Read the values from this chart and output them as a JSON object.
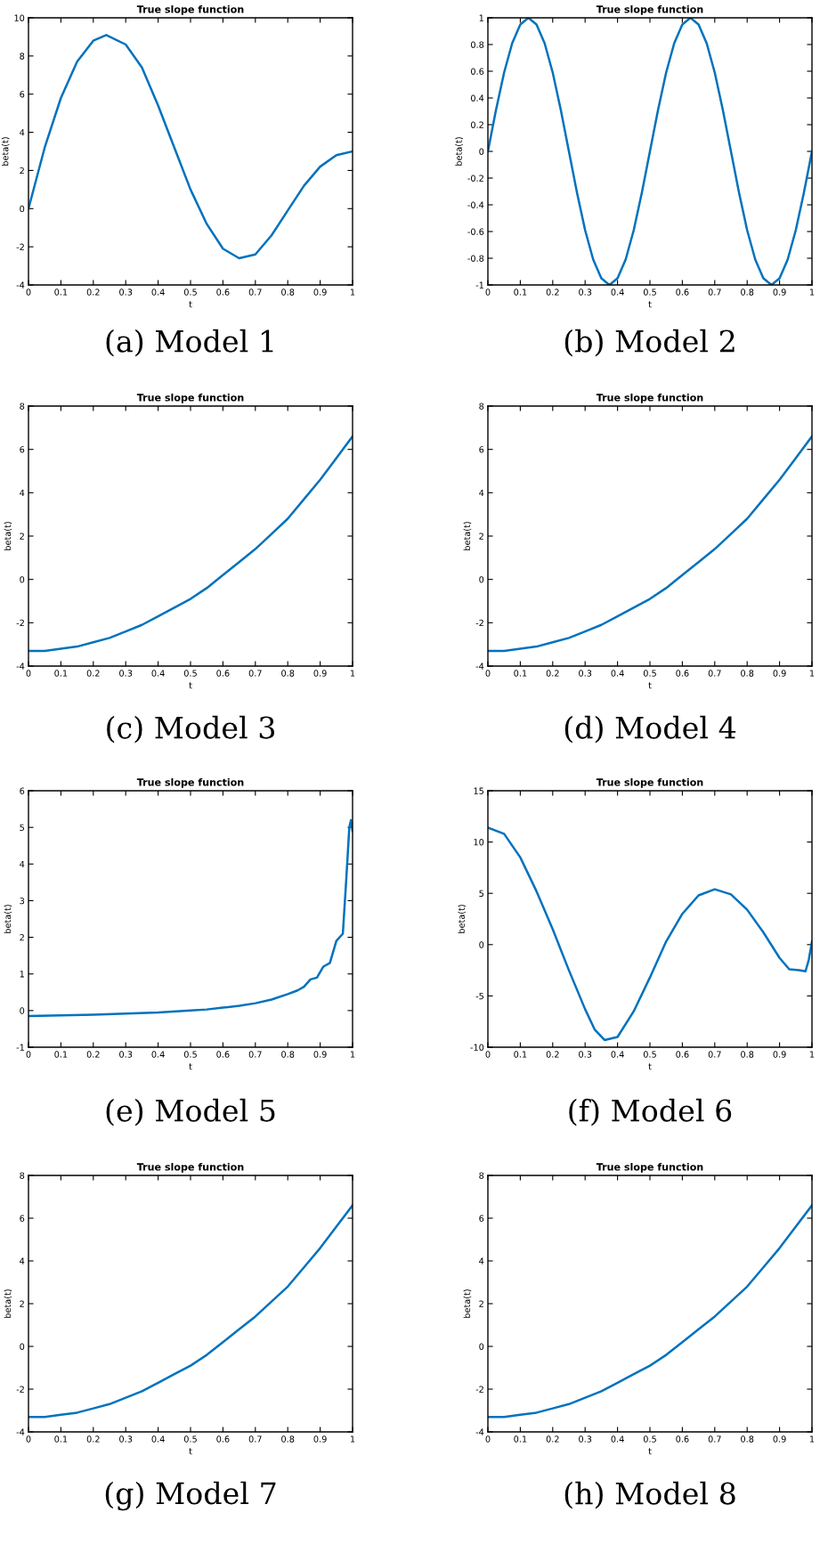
{
  "chart_data": [
    {
      "type": "line",
      "title": "True slope function",
      "xlabel": "t",
      "ylabel": "beta(t)",
      "annotations": [
        "(a) Model 1"
      ],
      "xlim": [
        0,
        1
      ],
      "xticks": [
        0,
        0.1,
        0.2,
        0.3,
        0.4,
        0.5,
        0.6,
        0.7,
        0.8,
        0.9,
        1
      ],
      "ylim": [
        -4,
        10
      ],
      "yticks": [
        -4,
        -2,
        0,
        2,
        4,
        6,
        8,
        10
      ],
      "grid": false,
      "legend": false,
      "series": [
        {
          "color": "#0072bd",
          "x": [
            0,
            0.05,
            0.1,
            0.15,
            0.2,
            0.24,
            0.3,
            0.35,
            0.4,
            0.45,
            0.5,
            0.55,
            0.6,
            0.65,
            0.7,
            0.75,
            0.8,
            0.85,
            0.9,
            0.95,
            1
          ],
          "values": [
            0,
            3.2,
            5.8,
            7.7,
            8.8,
            9.1,
            8.6,
            7.4,
            5.4,
            3.2,
            1.0,
            -0.8,
            -2.1,
            -2.6,
            -2.4,
            -1.4,
            -0.1,
            1.2,
            2.2,
            2.8,
            3.0
          ]
        }
      ]
    },
    {
      "type": "line",
      "title": "True slope function",
      "xlabel": "t",
      "ylabel": "beta(t)",
      "annotations": [
        "(b) Model 2"
      ],
      "xlim": [
        0,
        1
      ],
      "xticks": [
        0,
        0.1,
        0.2,
        0.3,
        0.4,
        0.5,
        0.6,
        0.7,
        0.8,
        0.9,
        1
      ],
      "ylim": [
        -1,
        1
      ],
      "yticks": [
        -1,
        -0.8,
        -0.6,
        -0.4,
        -0.2,
        0,
        0.2,
        0.4,
        0.6,
        0.8,
        1
      ],
      "grid": false,
      "legend": false,
      "series": [
        {
          "color": "#0072bd",
          "x": [
            0,
            0.025,
            0.05,
            0.075,
            0.1,
            0.125,
            0.15,
            0.175,
            0.2,
            0.225,
            0.25,
            0.275,
            0.3,
            0.325,
            0.35,
            0.375,
            0.4,
            0.425,
            0.45,
            0.475,
            0.5,
            0.525,
            0.55,
            0.575,
            0.6,
            0.625,
            0.65,
            0.675,
            0.7,
            0.725,
            0.75,
            0.775,
            0.8,
            0.825,
            0.85,
            0.875,
            0.9,
            0.925,
            0.95,
            0.975,
            1
          ],
          "values": [
            0,
            0.31,
            0.59,
            0.81,
            0.95,
            1,
            0.95,
            0.81,
            0.59,
            0.31,
            0,
            -0.31,
            -0.59,
            -0.81,
            -0.95,
            -1,
            -0.95,
            -0.81,
            -0.59,
            -0.31,
            0,
            0.31,
            0.59,
            0.81,
            0.95,
            1,
            0.95,
            0.81,
            0.59,
            0.31,
            0,
            -0.31,
            -0.59,
            -0.81,
            -0.95,
            -1,
            -0.95,
            -0.81,
            -0.59,
            -0.31,
            0
          ]
        }
      ]
    },
    {
      "type": "line",
      "title": "True slope function",
      "xlabel": "t",
      "ylabel": "beta(t)",
      "annotations": [
        "(c) Model 3"
      ],
      "xlim": [
        0,
        1
      ],
      "xticks": [
        0,
        0.1,
        0.2,
        0.3,
        0.4,
        0.5,
        0.6,
        0.7,
        0.8,
        0.9,
        1
      ],
      "ylim": [
        -4,
        8
      ],
      "yticks": [
        -4,
        -2,
        0,
        2,
        4,
        6,
        8
      ],
      "grid": false,
      "legend": false,
      "series": [
        {
          "color": "#0072bd",
          "x": [
            0,
            0.05,
            0.1,
            0.15,
            0.2,
            0.25,
            0.3,
            0.35,
            0.4,
            0.45,
            0.5,
            0.55,
            0.6,
            0.65,
            0.7,
            0.75,
            0.8,
            0.85,
            0.9,
            0.95,
            1
          ],
          "values": [
            -3.3,
            -3.3,
            -3.2,
            -3.1,
            -2.9,
            -2.7,
            -2.4,
            -2.1,
            -1.7,
            -1.3,
            -0.9,
            -0.4,
            0.2,
            0.8,
            1.4,
            2.1,
            2.8,
            3.7,
            4.6,
            5.6,
            6.6
          ]
        }
      ]
    },
    {
      "type": "line",
      "title": "True slope function",
      "xlabel": "t",
      "ylabel": "beta(t)",
      "annotations": [
        "(d) Model 4"
      ],
      "xlim": [
        0,
        1
      ],
      "xticks": [
        0,
        0.1,
        0.2,
        0.3,
        0.4,
        0.5,
        0.6,
        0.7,
        0.8,
        0.9,
        1
      ],
      "ylim": [
        -4,
        8
      ],
      "yticks": [
        -4,
        -2,
        0,
        2,
        4,
        6,
        8
      ],
      "grid": false,
      "legend": false,
      "series": [
        {
          "color": "#0072bd",
          "x": [
            0,
            0.05,
            0.1,
            0.15,
            0.2,
            0.25,
            0.3,
            0.35,
            0.4,
            0.45,
            0.5,
            0.55,
            0.6,
            0.65,
            0.7,
            0.75,
            0.8,
            0.85,
            0.9,
            0.95,
            1
          ],
          "values": [
            -3.3,
            -3.3,
            -3.2,
            -3.1,
            -2.9,
            -2.7,
            -2.4,
            -2.1,
            -1.7,
            -1.3,
            -0.9,
            -0.4,
            0.2,
            0.8,
            1.4,
            2.1,
            2.8,
            3.7,
            4.6,
            5.6,
            6.6
          ]
        }
      ]
    },
    {
      "type": "line",
      "title": "True slope function",
      "xlabel": "t",
      "ylabel": "beta(t)",
      "annotations": [
        "(e) Model 5"
      ],
      "xlim": [
        0,
        1
      ],
      "xticks": [
        0,
        0.1,
        0.2,
        0.3,
        0.4,
        0.5,
        0.6,
        0.7,
        0.8,
        0.9,
        1
      ],
      "ylim": [
        -1,
        6
      ],
      "yticks": [
        -1,
        0,
        1,
        2,
        3,
        4,
        5,
        6
      ],
      "grid": false,
      "legend": false,
      "series": [
        {
          "color": "#0072bd",
          "x": [
            0,
            0.1,
            0.2,
            0.3,
            0.4,
            0.5,
            0.55,
            0.6,
            0.65,
            0.7,
            0.75,
            0.8,
            0.83,
            0.85,
            0.87,
            0.89,
            0.91,
            0.93,
            0.95,
            0.97,
            0.98,
            0.99,
            0.995,
            1
          ],
          "values": [
            -0.15,
            -0.13,
            -0.11,
            -0.08,
            -0.05,
            0,
            0.03,
            0.08,
            0.13,
            0.2,
            0.3,
            0.45,
            0.55,
            0.65,
            0.85,
            0.9,
            1.2,
            1.3,
            1.9,
            2.1,
            3.5,
            5.0,
            5.2,
            4.9
          ]
        }
      ]
    },
    {
      "type": "line",
      "title": "True slope function",
      "xlabel": "t",
      "ylabel": "beta(t)",
      "annotations": [
        "(f) Model 6"
      ],
      "xlim": [
        0,
        1
      ],
      "xticks": [
        0,
        0.1,
        0.2,
        0.3,
        0.4,
        0.5,
        0.6,
        0.7,
        0.8,
        0.9,
        1
      ],
      "ylim": [
        -10,
        15
      ],
      "yticks": [
        -10,
        -5,
        0,
        5,
        10,
        15
      ],
      "grid": false,
      "legend": false,
      "series": [
        {
          "color": "#0072bd",
          "x": [
            0,
            0.05,
            0.1,
            0.15,
            0.2,
            0.25,
            0.3,
            0.33,
            0.36,
            0.4,
            0.45,
            0.5,
            0.55,
            0.6,
            0.65,
            0.7,
            0.75,
            0.8,
            0.85,
            0.9,
            0.93,
            0.96,
            0.98,
            0.99,
            1
          ],
          "values": [
            11.4,
            10.8,
            8.5,
            5.2,
            1.5,
            -2.5,
            -6.3,
            -8.3,
            -9.3,
            -9.0,
            -6.5,
            -3.2,
            0.3,
            3.0,
            4.8,
            5.4,
            4.9,
            3.4,
            1.2,
            -1.3,
            -2.4,
            -2.5,
            -2.6,
            -1.5,
            0.3
          ]
        }
      ]
    },
    {
      "type": "line",
      "title": "True slope function",
      "xlabel": "t",
      "ylabel": "beta(t)",
      "annotations": [
        "(g) Model 7"
      ],
      "xlim": [
        0,
        1
      ],
      "xticks": [
        0,
        0.1,
        0.2,
        0.3,
        0.4,
        0.5,
        0.6,
        0.7,
        0.8,
        0.9,
        1
      ],
      "ylim": [
        -4,
        8
      ],
      "yticks": [
        -4,
        -2,
        0,
        2,
        4,
        6,
        8
      ],
      "grid": false,
      "legend": false,
      "series": [
        {
          "color": "#0072bd",
          "x": [
            0,
            0.05,
            0.1,
            0.15,
            0.2,
            0.25,
            0.3,
            0.35,
            0.4,
            0.45,
            0.5,
            0.55,
            0.6,
            0.65,
            0.7,
            0.75,
            0.8,
            0.85,
            0.9,
            0.95,
            1
          ],
          "values": [
            -3.3,
            -3.3,
            -3.2,
            -3.1,
            -2.9,
            -2.7,
            -2.4,
            -2.1,
            -1.7,
            -1.3,
            -0.9,
            -0.4,
            0.2,
            0.8,
            1.4,
            2.1,
            2.8,
            3.7,
            4.6,
            5.6,
            6.6
          ]
        }
      ]
    },
    {
      "type": "line",
      "title": "True slope function",
      "xlabel": "t",
      "ylabel": "beta(t)",
      "annotations": [
        "(h) Model 8"
      ],
      "xlim": [
        0,
        1
      ],
      "xticks": [
        0,
        0.1,
        0.2,
        0.3,
        0.4,
        0.5,
        0.6,
        0.7,
        0.8,
        0.9,
        1
      ],
      "ylim": [
        -4,
        8
      ],
      "yticks": [
        -4,
        -2,
        0,
        2,
        4,
        6,
        8
      ],
      "grid": false,
      "legend": false,
      "series": [
        {
          "color": "#0072bd",
          "x": [
            0,
            0.05,
            0.1,
            0.15,
            0.2,
            0.25,
            0.3,
            0.35,
            0.4,
            0.45,
            0.5,
            0.55,
            0.6,
            0.65,
            0.7,
            0.75,
            0.8,
            0.85,
            0.9,
            0.95,
            1
          ],
          "values": [
            -3.3,
            -3.3,
            -3.2,
            -3.1,
            -2.9,
            -2.7,
            -2.4,
            -2.1,
            -1.7,
            -1.3,
            -0.9,
            -0.4,
            0.2,
            0.8,
            1.4,
            2.1,
            2.8,
            3.7,
            4.6,
            5.6,
            6.6
          ]
        }
      ]
    }
  ]
}
